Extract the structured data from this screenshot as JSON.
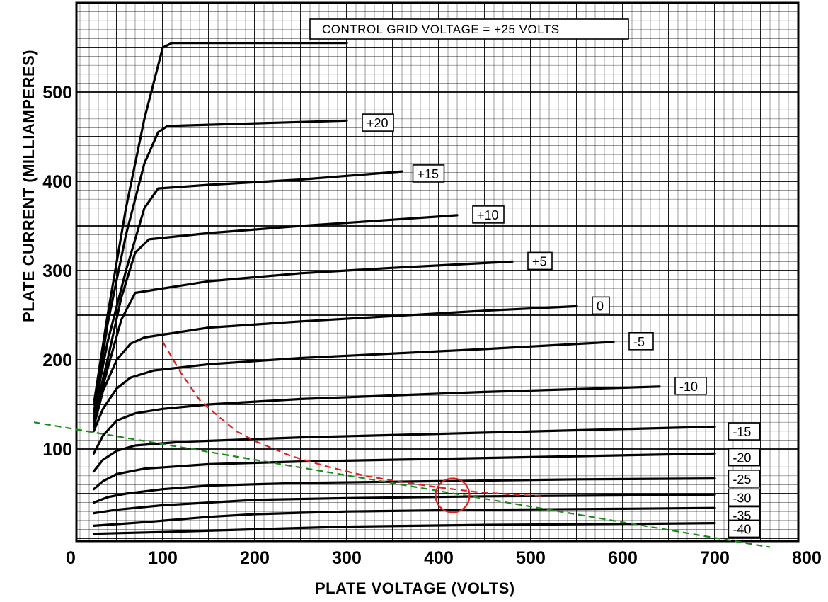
{
  "chart_data": {
    "type": "line",
    "title": "",
    "header": "CONTROL GRID VOLTAGE = +25 VOLTS",
    "xlabel": "PLATE VOLTAGE (VOLTS)",
    "ylabel": "PLATE CURRENT (MILLIAMPERES)",
    "xlim": [
      0,
      800
    ],
    "ylim": [
      0,
      580
    ],
    "x_ticks": [
      0,
      100,
      200,
      300,
      400,
      500,
      600,
      700,
      800
    ],
    "y_ticks": [
      100,
      200,
      300,
      400,
      500
    ],
    "grid": true,
    "series": [
      {
        "name": "+25 VOLTS",
        "x": [
          25,
          40,
          60,
          80,
          100,
          110,
          300
        ],
        "y": [
          150,
          250,
          370,
          470,
          550,
          555,
          555
        ]
      },
      {
        "name": "+20",
        "x": [
          25,
          40,
          60,
          80,
          95,
          105,
          300
        ],
        "y": [
          140,
          240,
          340,
          420,
          455,
          462,
          468
        ]
      },
      {
        "name": "+15",
        "x": [
          25,
          40,
          60,
          80,
          95,
          150,
          250,
          360
        ],
        "y": [
          140,
          220,
          300,
          370,
          392,
          396,
          402,
          411
        ]
      },
      {
        "name": "+10",
        "x": [
          25,
          40,
          55,
          70,
          85,
          150,
          250,
          350,
          420
        ],
        "y": [
          135,
          200,
          270,
          320,
          335,
          342,
          350,
          357,
          362
        ]
      },
      {
        "name": "+5",
        "x": [
          25,
          40,
          55,
          70,
          150,
          250,
          350,
          480
        ],
        "y": [
          130,
          190,
          245,
          275,
          288,
          297,
          303,
          310
        ]
      },
      {
        "name": "0",
        "x": [
          25,
          35,
          50,
          65,
          80,
          150,
          250,
          350,
          450,
          550
        ],
        "y": [
          125,
          165,
          200,
          218,
          225,
          236,
          243,
          249,
          255,
          260
        ]
      },
      {
        "name": "-5",
        "x": [
          25,
          35,
          50,
          65,
          90,
          150,
          250,
          350,
          450,
          590
        ],
        "y": [
          120,
          145,
          168,
          180,
          188,
          195,
          202,
          207,
          212,
          220
        ]
      },
      {
        "name": "-10",
        "x": [
          25,
          35,
          50,
          70,
          100,
          150,
          250,
          350,
          450,
          640
        ],
        "y": [
          95,
          115,
          132,
          140,
          145,
          150,
          156,
          160,
          164,
          170
        ]
      },
      {
        "name": "-15",
        "x": [
          25,
          35,
          50,
          70,
          120,
          250,
          400,
          550,
          700
        ],
        "y": [
          75,
          88,
          98,
          104,
          108,
          113,
          117,
          121,
          125
        ]
      },
      {
        "name": "-20",
        "x": [
          25,
          35,
          50,
          80,
          150,
          250,
          400,
          550,
          700
        ],
        "y": [
          55,
          64,
          72,
          78,
          83,
          86,
          89,
          92,
          95
        ]
      },
      {
        "name": "-25",
        "x": [
          25,
          40,
          60,
          100,
          150,
          250,
          400,
          550,
          700
        ],
        "y": [
          40,
          46,
          50,
          55,
          59,
          62,
          64,
          66,
          67
        ]
      },
      {
        "name": "-30",
        "x": [
          25,
          50,
          100,
          150,
          200,
          300,
          450,
          600,
          700
        ],
        "y": [
          28,
          32,
          37,
          40,
          43,
          45,
          47,
          48,
          49
        ]
      },
      {
        "name": "-35",
        "x": [
          25,
          80,
          150,
          200,
          300,
          450,
          600,
          700
        ],
        "y": [
          14,
          18,
          24,
          27,
          30,
          32,
          33,
          34
        ]
      },
      {
        "name": "-40",
        "x": [
          25,
          100,
          200,
          300,
          450,
          600,
          700
        ],
        "y": [
          5,
          7,
          10,
          13,
          15,
          16,
          17
        ]
      }
    ],
    "curve_labels": [
      {
        "text": "+20",
        "x": 320,
        "y": 465
      },
      {
        "text": "+15",
        "x": 375,
        "y": 408
      },
      {
        "text": "+10",
        "x": 440,
        "y": 362
      },
      {
        "text": "+5",
        "x": 500,
        "y": 310
      },
      {
        "text": "0",
        "x": 570,
        "y": 260
      },
      {
        "text": "-5",
        "x": 610,
        "y": 220
      },
      {
        "text": "-10",
        "x": 660,
        "y": 170
      },
      {
        "text": "-15",
        "x": 718,
        "y": 119
      },
      {
        "text": "-20",
        "x": 718,
        "y": 90
      },
      {
        "text": "-25",
        "x": 718,
        "y": 66
      },
      {
        "text": "-30",
        "x": 718,
        "y": 45
      },
      {
        "text": "-35",
        "x": 718,
        "y": 25
      },
      {
        "text": "-40",
        "x": 718,
        "y": 10
      }
    ],
    "overlays": [
      {
        "name": "load-line",
        "style": "dashed",
        "color": "#1a8a1a",
        "x": [
          -40,
          760
        ],
        "y": [
          130,
          -10
        ]
      },
      {
        "name": "power-hyperbola",
        "style": "dashed",
        "color": "#e02020",
        "x": [
          100,
          120,
          140,
          160,
          180,
          200,
          240,
          280,
          320,
          360,
          400,
          440,
          480,
          515
        ],
        "y": [
          220,
          185,
          155,
          137,
          120,
          109,
          92,
          80,
          70,
          63,
          57,
          52,
          49,
          47
        ]
      },
      {
        "name": "operating-point",
        "shape": "circle",
        "color": "#e02020",
        "x": 415,
        "y": 48
      }
    ]
  }
}
